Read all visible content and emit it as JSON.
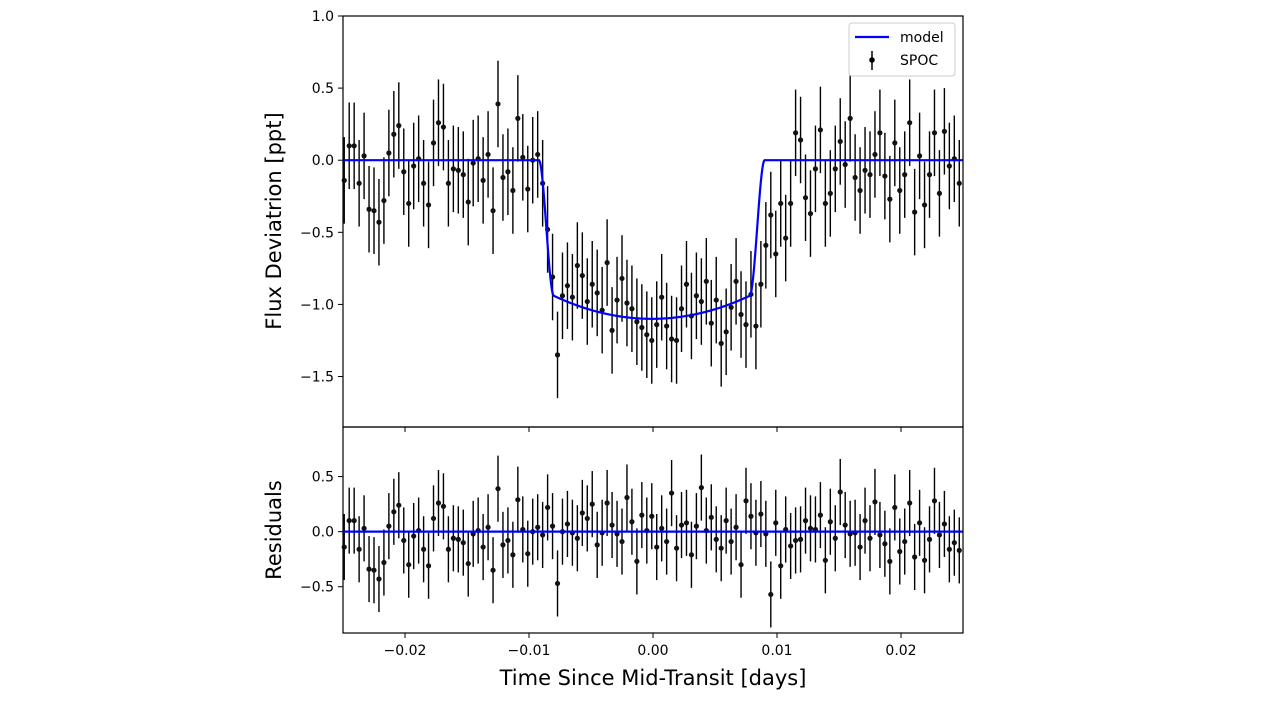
{
  "chart_data": [
    {
      "type": "scatter",
      "panel": "top",
      "title": "",
      "xlabel": "",
      "ylabel": "Flux Deviatrion [ppt]",
      "xlim": [
        -0.025,
        0.025
      ],
      "ylim": [
        -1.85,
        1.0
      ],
      "yticks": [
        1.0,
        0.5,
        0.0,
        -0.5,
        -1.0,
        -1.5
      ],
      "ytick_labels": [
        "1.0",
        "0.5",
        "0.0",
        "−0.5",
        "−1.0",
        "−1.5"
      ],
      "grid": false,
      "legend": {
        "placement": "top-right",
        "entries": [
          "model",
          "SPOC"
        ]
      },
      "colors": {
        "model": "#0000ff",
        "data": "#000000"
      },
      "model": {
        "name": "model",
        "depth": 1.1,
        "ingress_start": -0.0092,
        "ingress_end": -0.008,
        "egress_start": 0.0078,
        "egress_end": 0.009,
        "limb_curvature": 0.16
      },
      "series": [
        {
          "name": "SPOC",
          "x": [
            -0.0249,
            -0.0245,
            -0.0241,
            -0.0237,
            -0.0233,
            -0.0229,
            -0.0225,
            -0.0221,
            -0.0217,
            -0.0213,
            -0.0209,
            -0.0205,
            -0.0201,
            -0.0197,
            -0.0193,
            -0.0189,
            -0.0185,
            -0.0181,
            -0.0177,
            -0.0173,
            -0.0169,
            -0.0165,
            -0.0161,
            -0.0157,
            -0.0153,
            -0.0149,
            -0.0145,
            -0.0141,
            -0.0137,
            -0.0133,
            -0.0129,
            -0.0125,
            -0.0121,
            -0.0117,
            -0.0113,
            -0.0109,
            -0.0105,
            -0.0101,
            -0.0097,
            -0.0093,
            -0.0089,
            -0.0085,
            -0.0081,
            -0.0077,
            -0.0073,
            -0.0069,
            -0.0065,
            -0.0061,
            -0.0057,
            -0.0053,
            -0.0049,
            -0.0045,
            -0.0041,
            -0.0037,
            -0.0033,
            -0.0029,
            -0.0025,
            -0.0021,
            -0.0017,
            -0.0013,
            -0.0009,
            -0.0005,
            -0.0001,
            0.0003,
            0.0007,
            0.0011,
            0.0015,
            0.0019,
            0.0023,
            0.0027,
            0.0031,
            0.0035,
            0.0039,
            0.0043,
            0.0047,
            0.0051,
            0.0055,
            0.0059,
            0.0063,
            0.0067,
            0.0071,
            0.0075,
            0.0079,
            0.0083,
            0.0087,
            0.0091,
            0.0095,
            0.0099,
            0.0103,
            0.0107,
            0.0111,
            0.0115,
            0.0119,
            0.0123,
            0.0127,
            0.0131,
            0.0135,
            0.0139,
            0.0143,
            0.0147,
            0.0151,
            0.0155,
            0.0159,
            0.0163,
            0.0167,
            0.0171,
            0.0175,
            0.0179,
            0.0183,
            0.0187,
            0.0191,
            0.0195,
            0.0199,
            0.0203,
            0.0207,
            0.0211,
            0.0215,
            0.0219,
            0.0223,
            0.0227,
            0.0231,
            0.0235,
            0.0239,
            0.0243,
            0.0247
          ],
          "y": [
            -0.14,
            0.1,
            0.1,
            -0.16,
            0.03,
            -0.34,
            -0.35,
            -0.43,
            -0.28,
            0.05,
            0.18,
            0.24,
            -0.08,
            -0.3,
            -0.04,
            0.01,
            -0.16,
            -0.31,
            0.12,
            0.26,
            0.23,
            -0.16,
            -0.06,
            -0.07,
            -0.1,
            -0.29,
            -0.02,
            0.01,
            -0.14,
            0.04,
            -0.35,
            0.39,
            -0.12,
            -0.08,
            -0.21,
            0.29,
            0.02,
            -0.2,
            0.0,
            0.04,
            -0.16,
            -0.48,
            -0.81,
            -1.35,
            -0.94,
            -0.87,
            -0.95,
            -0.73,
            -0.8,
            -0.98,
            -0.86,
            -0.92,
            -1.04,
            -0.71,
            -1.18,
            -0.97,
            -0.82,
            -0.99,
            -1.03,
            -1.12,
            -1.16,
            -1.21,
            -1.25,
            -1.14,
            -0.95,
            -1.15,
            -1.24,
            -1.25,
            -1.03,
            -0.86,
            -1.08,
            -0.94,
            -0.98,
            -0.84,
            -1.13,
            -0.97,
            -1.27,
            -1.19,
            -1.02,
            -0.84,
            -1.07,
            -1.14,
            -0.93,
            -1.15,
            -0.86,
            -0.59,
            -0.38,
            -0.65,
            -0.3,
            -0.54,
            -0.3,
            0.19,
            0.14,
            -0.26,
            -0.37,
            -0.06,
            0.21,
            -0.3,
            -0.23,
            -0.06,
            0.13,
            -0.03,
            0.29,
            -0.12,
            -0.21,
            -0.07,
            -0.1,
            0.04,
            0.19,
            -0.11,
            -0.27,
            0.12,
            -0.21,
            -0.1,
            0.26,
            -0.36,
            0.03,
            -0.31,
            -0.1,
            0.19,
            -0.23,
            0.2,
            -0.04,
            0.01,
            -0.16
          ],
          "yerr": 0.3
        }
      ]
    },
    {
      "type": "scatter",
      "panel": "bottom",
      "title": "",
      "xlabel": "Time Since Mid-Transit [days]",
      "ylabel": "Residuals",
      "xlim": [
        -0.025,
        0.025
      ],
      "ylim": [
        -0.92,
        0.95
      ],
      "xticks": [
        -0.02,
        -0.01,
        0.0,
        0.01,
        0.02
      ],
      "xtick_labels": [
        "−0.02",
        "−0.01",
        "0.00",
        "0.01",
        "0.02"
      ],
      "yticks": [
        0.5,
        0.0,
        -0.5
      ],
      "ytick_labels": [
        "0.5",
        "0.0",
        "−0.5"
      ],
      "grid": false,
      "colors": {
        "model": "#0000ff",
        "data": "#000000"
      },
      "model": {
        "name": "model",
        "value": 0.0
      },
      "series": [
        {
          "name": "SPOC",
          "x": [
            -0.0249,
            -0.0245,
            -0.0241,
            -0.0237,
            -0.0233,
            -0.0229,
            -0.0225,
            -0.0221,
            -0.0217,
            -0.0213,
            -0.0209,
            -0.0205,
            -0.0201,
            -0.0197,
            -0.0193,
            -0.0189,
            -0.0185,
            -0.0181,
            -0.0177,
            -0.0173,
            -0.0169,
            -0.0165,
            -0.0161,
            -0.0157,
            -0.0153,
            -0.0149,
            -0.0145,
            -0.0141,
            -0.0137,
            -0.0133,
            -0.0129,
            -0.0125,
            -0.0121,
            -0.0117,
            -0.0113,
            -0.0109,
            -0.0105,
            -0.0101,
            -0.0097,
            -0.0093,
            -0.0089,
            -0.0085,
            -0.0081,
            -0.0077,
            -0.0073,
            -0.0069,
            -0.0065,
            -0.0061,
            -0.0057,
            -0.0053,
            -0.0049,
            -0.0045,
            -0.0041,
            -0.0037,
            -0.0033,
            -0.0029,
            -0.0025,
            -0.0021,
            -0.0017,
            -0.0013,
            -0.0009,
            -0.0005,
            -0.0001,
            0.0003,
            0.0007,
            0.0011,
            0.0015,
            0.0019,
            0.0023,
            0.0027,
            0.0031,
            0.0035,
            0.0039,
            0.0043,
            0.0047,
            0.0051,
            0.0055,
            0.0059,
            0.0063,
            0.0067,
            0.0071,
            0.0075,
            0.0079,
            0.0083,
            0.0087,
            0.0091,
            0.0095,
            0.0099,
            0.0103,
            0.0107,
            0.0111,
            0.0115,
            0.0119,
            0.0123,
            0.0127,
            0.0131,
            0.0135,
            0.0139,
            0.0143,
            0.0147,
            0.0151,
            0.0155,
            0.0159,
            0.0163,
            0.0167,
            0.0171,
            0.0175,
            0.0179,
            0.0183,
            0.0187,
            0.0191,
            0.0195,
            0.0199,
            0.0203,
            0.0207,
            0.0211,
            0.0215,
            0.0219,
            0.0223,
            0.0227,
            0.0231,
            0.0235,
            0.0239,
            0.0243,
            0.0247
          ],
          "y": [
            -0.14,
            0.1,
            0.1,
            -0.16,
            0.03,
            -0.34,
            -0.35,
            -0.43,
            -0.28,
            0.05,
            0.18,
            0.24,
            -0.08,
            -0.3,
            -0.04,
            0.01,
            -0.16,
            -0.31,
            0.12,
            0.26,
            0.23,
            -0.16,
            -0.06,
            -0.07,
            -0.1,
            -0.29,
            -0.02,
            0.01,
            -0.14,
            0.04,
            -0.35,
            0.39,
            -0.12,
            -0.08,
            -0.21,
            0.29,
            0.02,
            -0.2,
            0.0,
            0.04,
            -0.03,
            0.22,
            0.05,
            -0.47,
            0.0,
            0.07,
            -0.01,
            -0.06,
            0.17,
            0.12,
            0.25,
            -0.12,
            -0.01,
            0.26,
            0.06,
            -0.02,
            -0.09,
            0.31,
            0.09,
            -0.27,
            0.15,
            0.01,
            0.14,
            -0.14,
            0.03,
            -0.09,
            0.35,
            -0.15,
            0.06,
            0.08,
            -0.21,
            0.05,
            0.4,
            0.01,
            0.13,
            -0.07,
            -0.15,
            0.1,
            -0.09,
            0.04,
            -0.3,
            0.28,
            0.14,
            -0.01,
            0.16,
            -0.02,
            -0.57,
            0.08,
            -0.31,
            0.02,
            -0.13,
            -0.08,
            -0.07,
            0.1,
            0.03,
            0.02,
            0.15,
            -0.26,
            0.09,
            -0.06,
            0.36,
            0.06,
            -0.02,
            -0.01,
            -0.14,
            0.1,
            -0.06,
            0.27,
            -0.03,
            -0.11,
            -0.27,
            0.22,
            -0.18,
            -0.09,
            0.26,
            -0.23,
            0.08,
            -0.26,
            -0.07,
            0.28,
            -0.03,
            0.07,
            -0.16,
            -0.1,
            -0.17
          ],
          "yerr": 0.3
        }
      ]
    }
  ]
}
